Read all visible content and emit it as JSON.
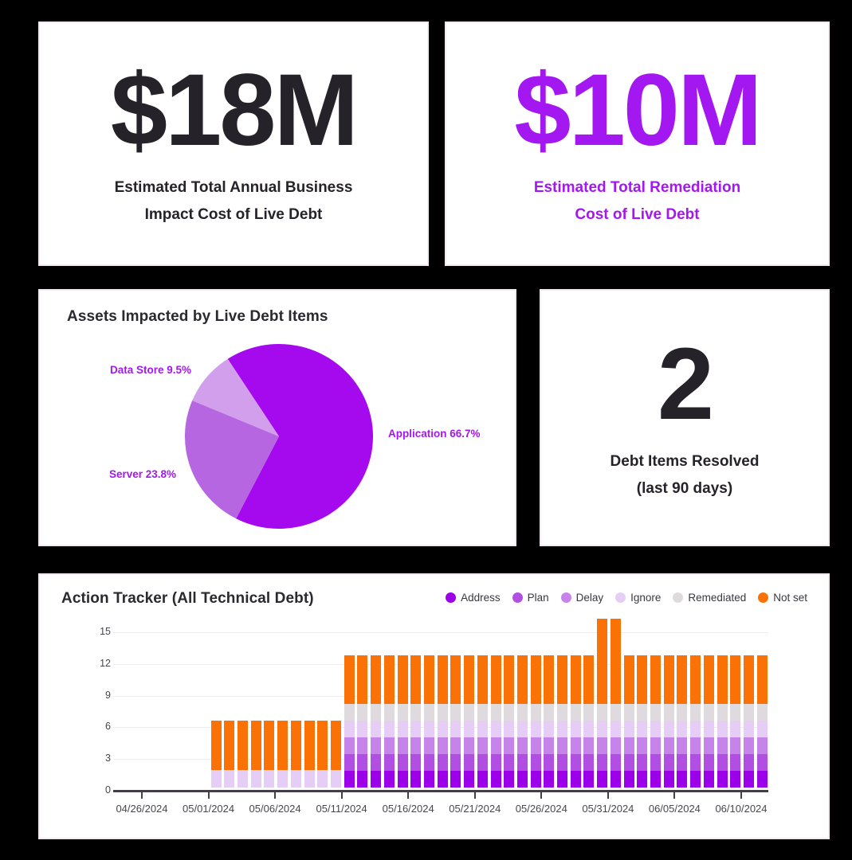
{
  "page": {
    "background": "#000000"
  },
  "cards": {
    "impact": {
      "value": "$18M",
      "label_line1": "Estimated Total Annual Business",
      "label_line2": "Impact Cost of Live Debt",
      "value_color": "#262229"
    },
    "remediation": {
      "value": "$10M",
      "label_line1": "Estimated Total Remediation",
      "label_line2": "Cost of Live Debt",
      "value_color": "#a318f0"
    },
    "resolved": {
      "value": "2",
      "label_line1": "Debt Items Resolved",
      "label_line2": "(last 90 days)"
    }
  },
  "chart_data": [
    {
      "id": "assets_pie",
      "type": "pie",
      "title": "Assets Impacted by Live Debt Items",
      "start_angle_deg_from_top": -33,
      "label_color": "#a318f0",
      "slices": [
        {
          "label": "Application",
          "pct": 66.7,
          "color": "#a50aee",
          "label_text": "Application 66.7%"
        },
        {
          "label": "Server",
          "pct": 23.8,
          "color": "#b766e1",
          "label_text": "Server 23.8%"
        },
        {
          "label": "Data Store",
          "pct": 9.5,
          "color": "#d19fec",
          "label_text": "Data Store 9.5%"
        }
      ]
    },
    {
      "id": "action_tracker",
      "type": "stacked_bar",
      "title": "Action Tracker (All Technical Debt)",
      "legend_position": "top-right",
      "grid": true,
      "y_ticks": [
        0,
        3,
        6,
        9,
        12,
        15
      ],
      "y_max": 15,
      "x_tick_labels": [
        "04/26/2024",
        "05/01/2024",
        "05/06/2024",
        "05/11/2024",
        "05/16/2024",
        "05/21/2024",
        "05/26/2024",
        "05/31/2024",
        "06/05/2024",
        "06/10/2024"
      ],
      "x_axis_start_date": "04/26/2024",
      "segment_order": [
        "Address",
        "Plan",
        "Delay",
        "Ignore",
        "Remediated",
        "Not set"
      ],
      "legend": [
        {
          "label": "Address",
          "color": "#9c00e8"
        },
        {
          "label": "Plan",
          "color": "#b24fe3"
        },
        {
          "label": "Delay",
          "color": "#c684ea"
        },
        {
          "label": "Ignore",
          "color": "#e5cdf6"
        },
        {
          "label": "Remediated",
          "color": "#dedade"
        },
        {
          "label": "Not set",
          "color": "#fa7106"
        }
      ],
      "bars": [
        {
          "date": "05/01/2024",
          "day": 5,
          "values": [
            0,
            0,
            0,
            1.65,
            0,
            4.7
          ]
        },
        {
          "date": "05/02/2024",
          "day": 6,
          "values": [
            0,
            0,
            0,
            1.65,
            0,
            4.7
          ]
        },
        {
          "date": "05/03/2024",
          "day": 7,
          "values": [
            0,
            0,
            0,
            1.65,
            0,
            4.7
          ]
        },
        {
          "date": "05/04/2024",
          "day": 8,
          "values": [
            0,
            0,
            0,
            1.65,
            0,
            4.7
          ]
        },
        {
          "date": "05/05/2024",
          "day": 9,
          "values": [
            0,
            0,
            0,
            1.65,
            0,
            4.7
          ]
        },
        {
          "date": "05/06/2024",
          "day": 10,
          "values": [
            0,
            0,
            0,
            1.65,
            0,
            4.7
          ]
        },
        {
          "date": "05/07/2024",
          "day": 11,
          "values": [
            0,
            0,
            0,
            1.65,
            0,
            4.7
          ]
        },
        {
          "date": "05/08/2024",
          "day": 12,
          "values": [
            0,
            0,
            0,
            1.65,
            0,
            4.7
          ]
        },
        {
          "date": "05/09/2024",
          "day": 13,
          "values": [
            0,
            0,
            0,
            1.65,
            0,
            4.7
          ]
        },
        {
          "date": "05/10/2024",
          "day": 14,
          "values": [
            0,
            0,
            0,
            1.65,
            0,
            4.7
          ]
        },
        {
          "date": "05/11/2024",
          "day": 15,
          "values": [
            1.6,
            1.55,
            1.6,
            1.55,
            1.6,
            4.65
          ]
        },
        {
          "date": "05/12/2024",
          "day": 16,
          "values": [
            1.6,
            1.55,
            1.6,
            1.55,
            1.6,
            4.65
          ]
        },
        {
          "date": "05/13/2024",
          "day": 17,
          "values": [
            1.6,
            1.55,
            1.6,
            1.55,
            1.6,
            4.65
          ]
        },
        {
          "date": "05/14/2024",
          "day": 18,
          "values": [
            1.6,
            1.55,
            1.6,
            1.55,
            1.6,
            4.65
          ]
        },
        {
          "date": "05/15/2024",
          "day": 19,
          "values": [
            1.6,
            1.55,
            1.6,
            1.55,
            1.6,
            4.65
          ]
        },
        {
          "date": "05/16/2024",
          "day": 20,
          "values": [
            1.6,
            1.55,
            1.6,
            1.55,
            1.6,
            4.65
          ]
        },
        {
          "date": "05/17/2024",
          "day": 21,
          "values": [
            1.6,
            1.55,
            1.6,
            1.55,
            1.6,
            4.65
          ]
        },
        {
          "date": "05/18/2024",
          "day": 22,
          "values": [
            1.6,
            1.55,
            1.6,
            1.55,
            1.6,
            4.65
          ]
        },
        {
          "date": "05/19/2024",
          "day": 23,
          "values": [
            1.6,
            1.55,
            1.6,
            1.55,
            1.6,
            4.65
          ]
        },
        {
          "date": "05/20/2024",
          "day": 24,
          "values": [
            1.6,
            1.55,
            1.6,
            1.55,
            1.6,
            4.65
          ]
        },
        {
          "date": "05/21/2024",
          "day": 25,
          "values": [
            1.6,
            1.55,
            1.6,
            1.55,
            1.6,
            4.65
          ]
        },
        {
          "date": "05/22/2024",
          "day": 26,
          "values": [
            1.6,
            1.55,
            1.6,
            1.55,
            1.6,
            4.65
          ]
        },
        {
          "date": "05/23/2024",
          "day": 27,
          "values": [
            1.6,
            1.55,
            1.6,
            1.55,
            1.6,
            4.65
          ]
        },
        {
          "date": "05/24/2024",
          "day": 28,
          "values": [
            1.6,
            1.55,
            1.6,
            1.55,
            1.6,
            4.65
          ]
        },
        {
          "date": "05/25/2024",
          "day": 29,
          "values": [
            1.6,
            1.55,
            1.6,
            1.55,
            1.6,
            4.65
          ]
        },
        {
          "date": "05/26/2024",
          "day": 30,
          "values": [
            1.6,
            1.55,
            1.6,
            1.55,
            1.6,
            4.65
          ]
        },
        {
          "date": "05/27/2024",
          "day": 31,
          "values": [
            1.6,
            1.55,
            1.6,
            1.55,
            1.6,
            4.65
          ]
        },
        {
          "date": "05/28/2024",
          "day": 32,
          "values": [
            1.6,
            1.55,
            1.6,
            1.55,
            1.6,
            4.65
          ]
        },
        {
          "date": "05/29/2024",
          "day": 33,
          "values": [
            1.6,
            1.55,
            1.6,
            1.55,
            1.6,
            4.65
          ]
        },
        {
          "date": "05/30/2024",
          "day": 34,
          "values": [
            1.6,
            1.55,
            1.6,
            1.55,
            1.6,
            8.05
          ]
        },
        {
          "date": "05/31/2024",
          "day": 35,
          "values": [
            1.6,
            1.55,
            1.6,
            1.55,
            1.6,
            8.05
          ]
        },
        {
          "date": "06/01/2024",
          "day": 36,
          "values": [
            1.6,
            1.55,
            1.6,
            1.55,
            1.6,
            4.65
          ]
        },
        {
          "date": "06/02/2024",
          "day": 37,
          "values": [
            1.6,
            1.55,
            1.6,
            1.55,
            1.6,
            4.65
          ]
        },
        {
          "date": "06/03/2024",
          "day": 38,
          "values": [
            1.6,
            1.55,
            1.6,
            1.55,
            1.6,
            4.65
          ]
        },
        {
          "date": "06/04/2024",
          "day": 39,
          "values": [
            1.6,
            1.55,
            1.6,
            1.55,
            1.6,
            4.65
          ]
        },
        {
          "date": "06/05/2024",
          "day": 40,
          "values": [
            1.6,
            1.55,
            1.6,
            1.55,
            1.6,
            4.65
          ]
        },
        {
          "date": "06/06/2024",
          "day": 41,
          "values": [
            1.6,
            1.55,
            1.6,
            1.55,
            1.6,
            4.65
          ]
        },
        {
          "date": "06/07/2024",
          "day": 42,
          "values": [
            1.6,
            1.55,
            1.6,
            1.55,
            1.6,
            4.65
          ]
        },
        {
          "date": "06/08/2024",
          "day": 43,
          "values": [
            1.6,
            1.55,
            1.6,
            1.55,
            1.6,
            4.65
          ]
        },
        {
          "date": "06/09/2024",
          "day": 44,
          "values": [
            1.6,
            1.55,
            1.6,
            1.55,
            1.6,
            4.65
          ]
        },
        {
          "date": "06/10/2024",
          "day": 45,
          "values": [
            1.6,
            1.55,
            1.6,
            1.55,
            1.6,
            4.65
          ]
        },
        {
          "date": "06/11/2024",
          "day": 46,
          "values": [
            1.6,
            1.55,
            1.6,
            1.55,
            1.6,
            4.65
          ]
        }
      ]
    }
  ]
}
